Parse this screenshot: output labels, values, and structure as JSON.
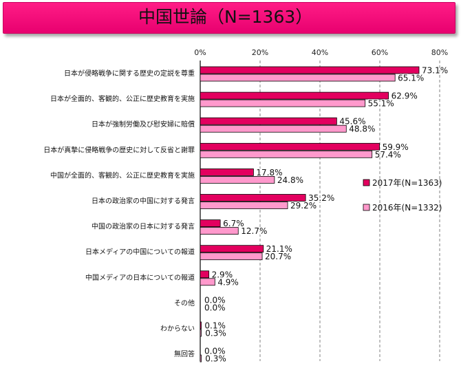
{
  "title": "中国世論（N=1363）",
  "chart_data": {
    "type": "bar",
    "orientation": "horizontal",
    "xlim": [
      0,
      80
    ],
    "ticks": [
      "0%",
      "20%",
      "40%",
      "60%",
      "80%"
    ],
    "tick_values": [
      0,
      20,
      40,
      60,
      80
    ],
    "grid": true,
    "legend_position": "right",
    "categories": [
      "日本が侵略戦争に関する歴史の定説を尊重",
      "日本が全面的、客観的、公正に歴史教育を実施",
      "日本が強制労働及び慰安婦に賠償",
      "日本が真摯に侵略戦争の歴史に対して反省と謝罪",
      "中国が全面的、客観的、公正に歴史教育を実施",
      "日本の政治家の中国に対する発言",
      "中国の政治家の日本に対する発言",
      "日本メディアの中国についての報道",
      "中国メディアの日本についての報道",
      "その他",
      "わからない",
      "無回答"
    ],
    "series": [
      {
        "name": "2017年(N=1363)",
        "color": "#e3005f",
        "values": [
          73.1,
          62.9,
          45.6,
          59.9,
          17.8,
          35.2,
          6.7,
          21.1,
          2.9,
          0.0,
          0.1,
          0.0
        ],
        "labels": [
          "73.1%",
          "62.9%",
          "45.6%",
          "59.9%",
          "17.8%",
          "35.2%",
          "6.7%",
          "21.1%",
          "2.9%",
          "0.0%",
          "0.1%",
          "0.0%"
        ]
      },
      {
        "name": "2016年(N=1332)",
        "color": "#ff99cc",
        "values": [
          65.1,
          55.1,
          48.8,
          57.4,
          24.8,
          29.2,
          12.7,
          20.7,
          4.9,
          0.0,
          0.3,
          0.3
        ],
        "labels": [
          "65.1%",
          "55.1%",
          "48.8%",
          "57.4%",
          "24.8%",
          "29.2%",
          "12.7%",
          "20.7%",
          "4.9%",
          "0.0%",
          "0.3%",
          "0.3%"
        ]
      }
    ]
  }
}
